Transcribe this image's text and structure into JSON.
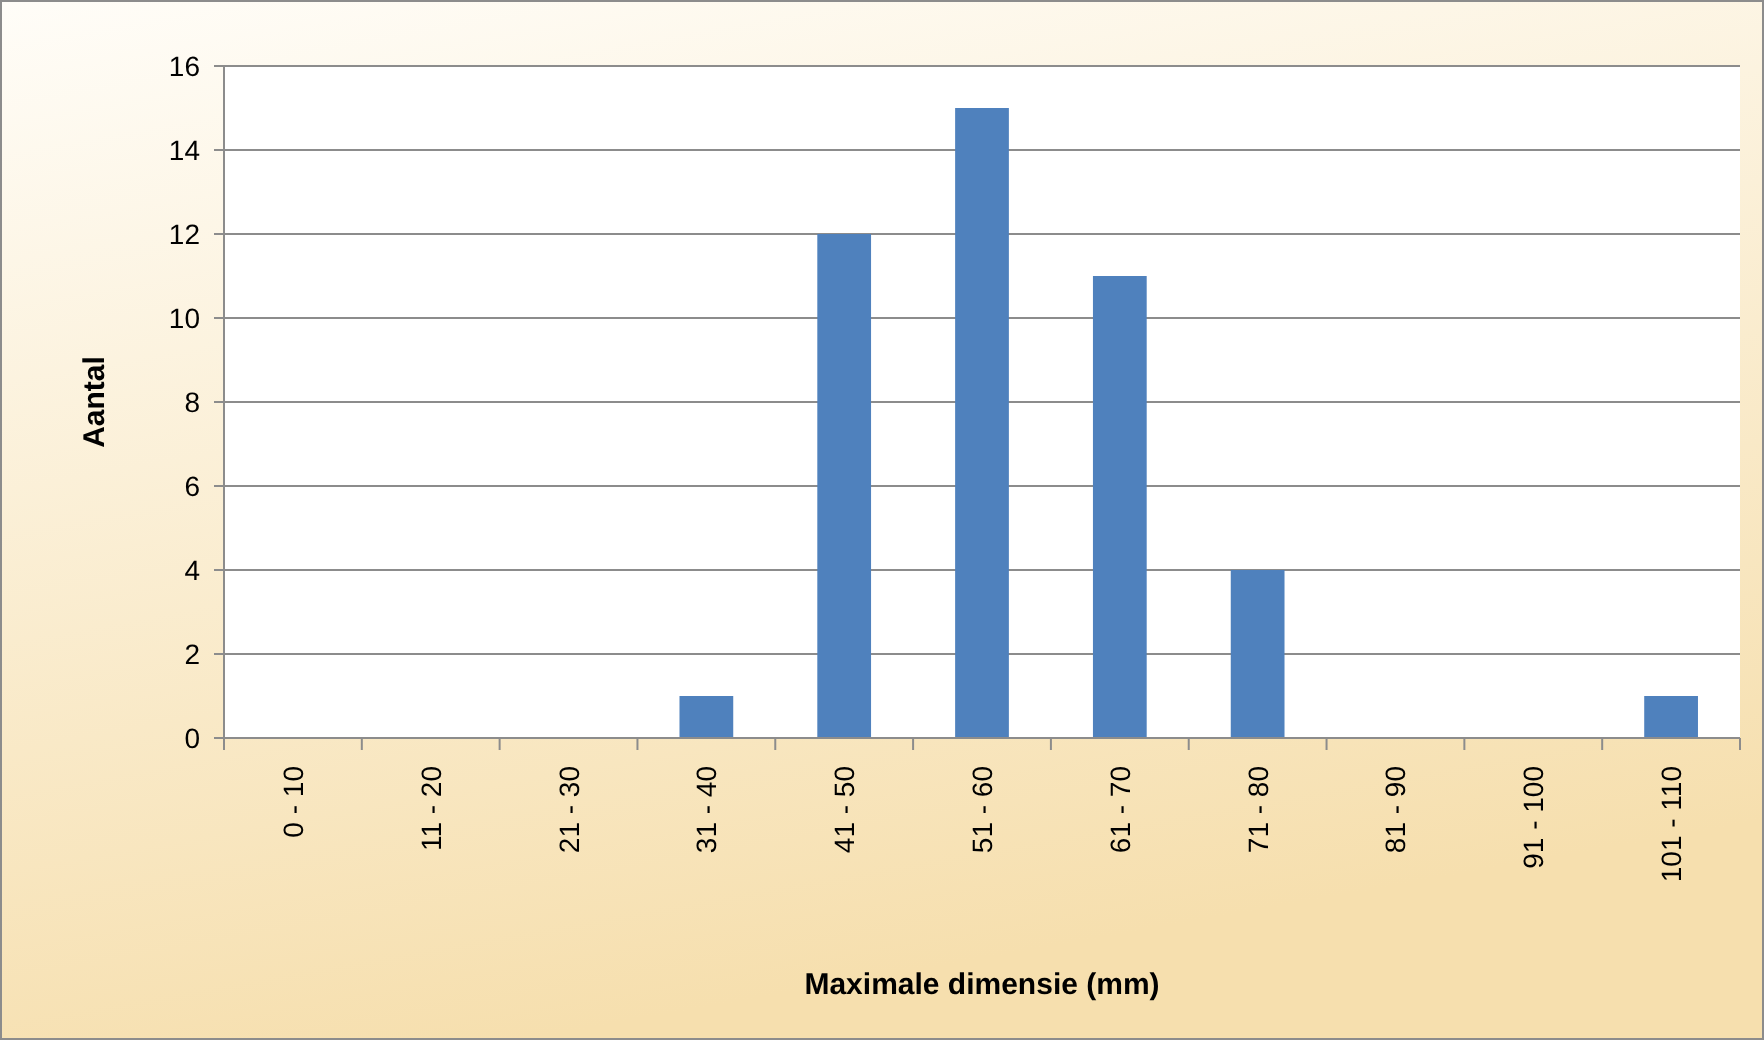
{
  "chart_data": {
    "type": "bar",
    "xlabel": "Maximale dimensie (mm)",
    "ylabel": "Aantal",
    "categories": [
      "0 - 10",
      "11 - 20",
      "21 - 30",
      "31 - 40",
      "41 - 50",
      "51 - 60",
      "61 - 70",
      "71 - 80",
      "81 - 90",
      "91 - 100",
      "101 - 110"
    ],
    "values": [
      0,
      0,
      0,
      1,
      12,
      15,
      11,
      4,
      0,
      0,
      1
    ],
    "color": "#4f81bd",
    "ylim": [
      0,
      16
    ],
    "yticks": [
      0,
      2,
      4,
      6,
      8,
      10,
      12,
      14,
      16
    ],
    "grid": "y"
  }
}
